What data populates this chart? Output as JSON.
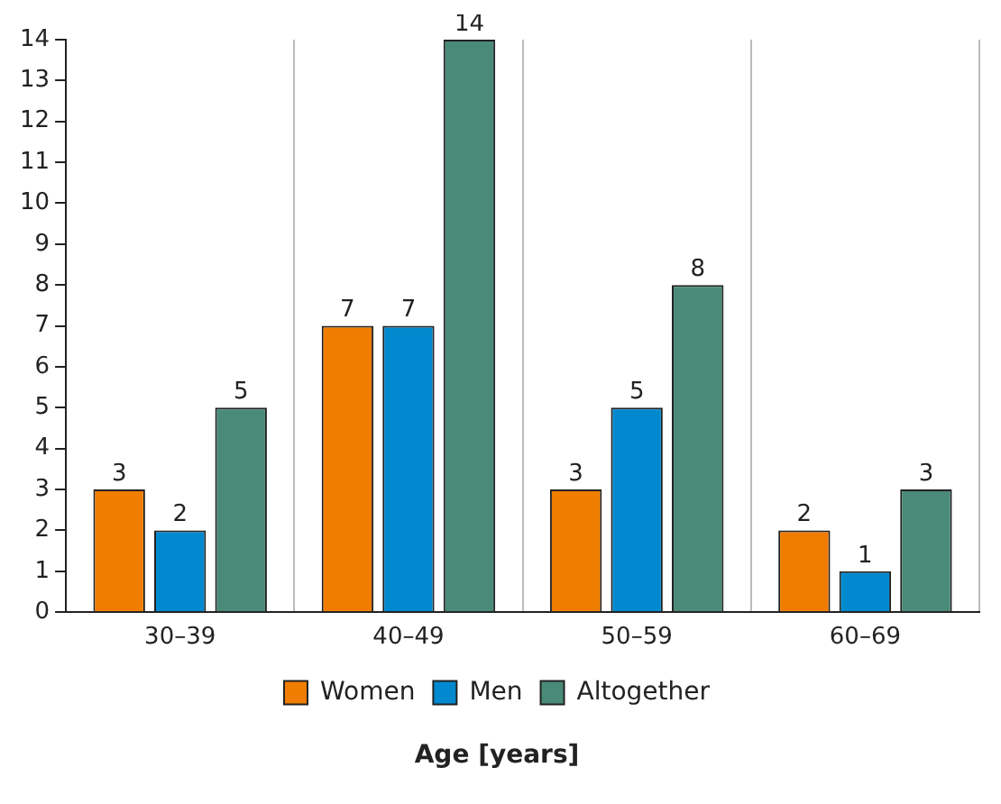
{
  "chart_data": {
    "type": "bar",
    "xlabel": "Age [years]",
    "categories": [
      "30–39",
      "40–49",
      "50–59",
      "60–69"
    ],
    "series": [
      {
        "name": "Women",
        "color": "#f07d00",
        "values": [
          3,
          7,
          3,
          2
        ]
      },
      {
        "name": "Men",
        "color": "#0089cf",
        "values": [
          2,
          7,
          5,
          1
        ]
      },
      {
        "name": "Altogether",
        "color": "#4a8a78",
        "values": [
          5,
          14,
          8,
          3
        ]
      }
    ],
    "ylim": [
      0,
      14
    ],
    "yticks": [
      0,
      1,
      2,
      3,
      4,
      5,
      6,
      7,
      8,
      9,
      10,
      11,
      12,
      13,
      14
    ],
    "grid": "x",
    "legend": "bottom",
    "data_labels": true
  }
}
